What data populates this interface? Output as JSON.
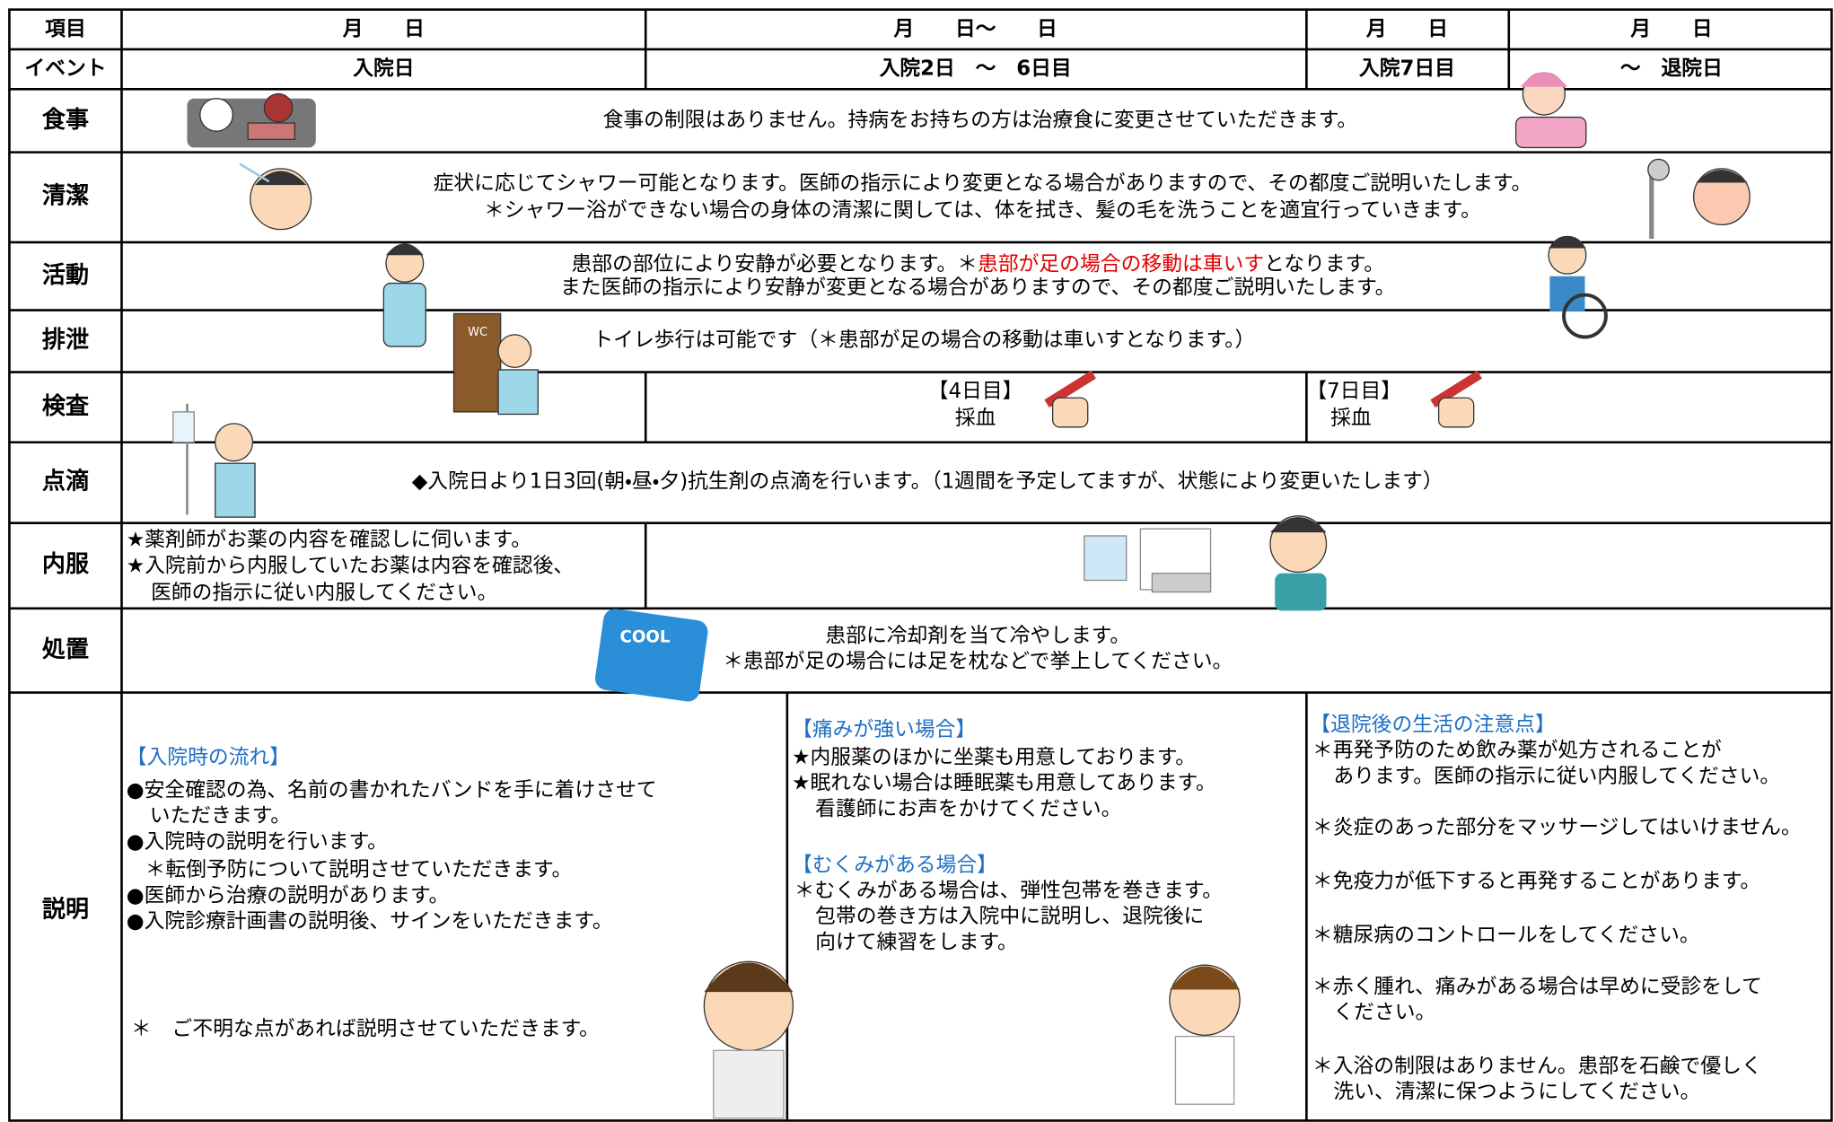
{
  "table": {
    "header": [
      "項目",
      "月　　日",
      "月　　日～　　日",
      "月　　日",
      "月　　日"
    ],
    "event": [
      "イベント",
      "入院日",
      "入院2日　～　6日目",
      "入院7日目",
      "～　退院日"
    ],
    "meal": {
      "label": "食事",
      "text": "食事の制限はありません。持病をお持ちの方は治療食に変更させていただきます。"
    },
    "hygiene": {
      "label": "清潔",
      "lines": [
        "症状に応じてシャワー可能となります。医師の指示により変更となる場合がありますので、その都度ご説明いたします。",
        "＊シャワー浴ができない場合の身体の清潔に関しては、体を拭き、髪の毛を洗うことを適宜行っていきます。"
      ]
    },
    "activity": {
      "label": "活動",
      "line1": [
        "患部の部位により安静が必要となります。＊",
        "患部が足の場合の移動は車いす",
        "となります。"
      ],
      "line2": "また医師の指示により安静が変更となる場合がありますので、その都度ご説明いたします。"
    },
    "excretion": {
      "label": "排泄",
      "text": "トイレ歩行は可能です（＊患部が足の場合の移動は車いすとなります。）"
    },
    "exam": {
      "label": "検査",
      "day4": {
        "day": "【4日目】",
        "item": "採血"
      },
      "day7": {
        "day": "【7日目】",
        "item": "採血"
      }
    },
    "drip": {
      "label": "点滴",
      "text": "◆入院日より1日3回(朝・昼・夕)抗生剤の点滴を行います。（1週間を予定してますが、状態により変更いたします）"
    },
    "oral": {
      "label": "内服",
      "lines": [
        "★薬剤師がお薬の内容を確認しに伺います。",
        "★入院前から内服していたお薬は内容を確認後、",
        "医師の指示に従い内服してください。"
      ]
    },
    "treatment": {
      "label": "処置",
      "lines": [
        "患部に冷却剤を当て冷やします。",
        "＊患部が足の場合には足を枕などで挙上してください。"
      ]
    },
    "explanation": {
      "label": "説明",
      "admission": {
        "heading": "【入院時の流れ】",
        "lines": [
          "●安全確認の為、名前の書かれたバンドを手に着けさせて",
          "いただきます。",
          "●入院時の説明を行います。",
          "＊転倒予防について説明させていただきます。",
          "●医師から治療の説明があります。",
          "●入院診療計画書の説明後、サインをいただきます。"
        ],
        "note": "＊　ご不明な点があれば説明させていただきます。"
      },
      "pain": {
        "heading": "【痛みが強い場合】",
        "lines": [
          "★内服薬のほかに坐薬も用意しております。",
          "★眠れない場合は睡眠薬も用意してあります。",
          "看護師にお声をかけてください。"
        ]
      },
      "swelling": {
        "heading": "【むくみがある場合】",
        "lines": [
          "＊むくみがある場合は、弾性包帯を巻きます。",
          "包帯の巻き方は入院中に説明し、退院後に",
          "向けて練習をします。"
        ]
      },
      "after_discharge": {
        "heading": "【退院後の生活の注意点】",
        "lines": [
          "＊再発予防のため飲み薬が処方されることが",
          "あります。医師の指示に従い内服してください。",
          "＊炎症のあった部分をマッサージしてはいけません。",
          "＊免疫力が低下すると再発することがあります。",
          "＊糖尿病のコントロールをしてください。",
          "＊赤く腫れ、痛みがある場合は早めに受診をして",
          "ください。",
          "＊入浴の制限はありません。患部を石鹸で優しく",
          "洗い、清潔に保つようにしてください。"
        ]
      }
    }
  }
}
